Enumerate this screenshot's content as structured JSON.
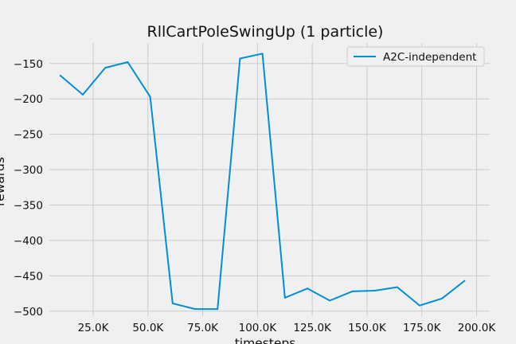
{
  "chart_data": {
    "type": "line",
    "title": "RllCartPoleSwingUp (1 particle)",
    "xlabel": "timesteps",
    "ylabel": "rewards",
    "xlim": [
      5000,
      206000
    ],
    "ylim": [
      -507,
      -121
    ],
    "xticks": [
      25000,
      50000,
      75000,
      100000,
      125000,
      150000,
      175000,
      200000
    ],
    "xtick_labels": [
      "25.0K",
      "50.0K",
      "75.0K",
      "100.0K",
      "125.0K",
      "150.0K",
      "175.0K",
      "200.0K"
    ],
    "yticks": [
      -150,
      -200,
      -250,
      -300,
      -350,
      -400,
      -450,
      -500
    ],
    "ytick_labels": [
      "−150",
      "−200",
      "−250",
      "−300",
      "−350",
      "−400",
      "−450",
      "−500"
    ],
    "grid": true,
    "legend_position": "top-right",
    "series": [
      {
        "name": "A2C-independent",
        "color": "#008fd5",
        "x": [
          10000,
          20250,
          30500,
          40750,
          51000,
          61250,
          71500,
          81750,
          92000,
          102250,
          112500,
          122750,
          133000,
          143250,
          153500,
          163750,
          174000,
          184250,
          194500
        ],
        "y": [
          -167,
          -194,
          -156,
          -148,
          -197,
          -489,
          -497,
          -497,
          -143,
          -136,
          -481,
          -468,
          -485,
          -472,
          -471,
          -466,
          -492,
          -482,
          -457
        ]
      }
    ]
  }
}
